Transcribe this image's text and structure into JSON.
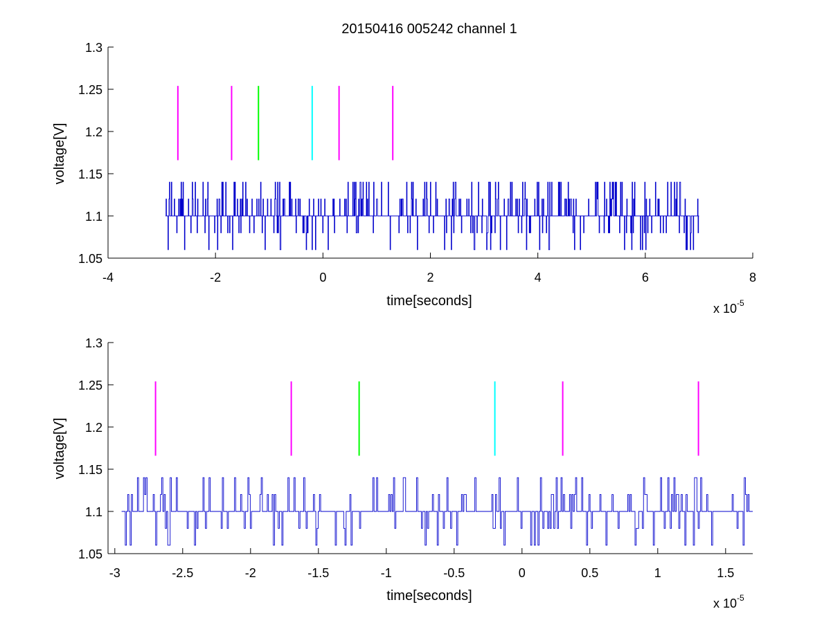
{
  "chart_data": [
    {
      "type": "line",
      "title": "20150416 005242 channel 1",
      "xlabel": "time[seconds]",
      "ylabel": "voltage[V]",
      "x_multiplier": "x 10",
      "x_multiplier_exponent": "-5",
      "xlim": [
        -4,
        8
      ],
      "ylim": [
        1.05,
        1.3
      ],
      "xticks": [
        -4,
        -2,
        0,
        2,
        4,
        6,
        8
      ],
      "xtick_labels": [
        "-4",
        "-2",
        "0",
        "2",
        "4",
        "6",
        "8"
      ],
      "yticks": [
        1.05,
        1.1,
        1.15,
        1.2,
        1.25,
        1.3
      ],
      "ytick_labels": [
        "1.05",
        "1.1",
        "1.15",
        "1.2",
        "1.25",
        "1.3"
      ],
      "grid": false,
      "signal": {
        "color": "#0000cc",
        "x_start": -2.93,
        "x_end": 7.0,
        "levels": [
          1.06,
          1.08,
          1.1,
          1.12,
          1.14
        ],
        "seed": 7,
        "steps": 1100
      },
      "markers": [
        {
          "x": -2.7,
          "y_range": [
            1.166,
            1.254
          ],
          "color": "#ff00ff"
        },
        {
          "x": -1.7,
          "y_range": [
            1.166,
            1.254
          ],
          "color": "#ff00ff"
        },
        {
          "x": -1.2,
          "y_range": [
            1.166,
            1.254
          ],
          "color": "#00ff00"
        },
        {
          "x": -0.2,
          "y_range": [
            1.166,
            1.254
          ],
          "color": "#00ffff"
        },
        {
          "x": 0.3,
          "y_range": [
            1.166,
            1.254
          ],
          "color": "#ff00ff"
        },
        {
          "x": 1.3,
          "y_range": [
            1.166,
            1.254
          ],
          "color": "#ff00ff"
        }
      ]
    },
    {
      "type": "line",
      "xlabel": "time[seconds]",
      "ylabel": "voltage[V]",
      "x_multiplier": "x 10",
      "x_multiplier_exponent": "-5",
      "xlim": [
        -3.05,
        1.7
      ],
      "ylim": [
        1.05,
        1.3
      ],
      "xticks": [
        -3,
        -2.5,
        -2,
        -1.5,
        -1,
        -0.5,
        0,
        0.5,
        1,
        1.5
      ],
      "xtick_labels": [
        "-3",
        "-2.5",
        "-2",
        "-1.5",
        "-1",
        "-0.5",
        "0",
        "0.5",
        "1",
        "1.5"
      ],
      "yticks": [
        1.05,
        1.1,
        1.15,
        1.2,
        1.25,
        1.3
      ],
      "ytick_labels": [
        "1.05",
        "1.1",
        "1.15",
        "1.2",
        "1.25",
        "1.3"
      ],
      "grid": false,
      "signal": {
        "color": "#0000cc",
        "x_start": -2.95,
        "x_end": 1.7,
        "levels": [
          1.06,
          1.08,
          1.1,
          1.12,
          1.14
        ],
        "seed": 13,
        "steps": 520
      },
      "markers": [
        {
          "x": -2.7,
          "y_range": [
            1.166,
            1.254
          ],
          "color": "#ff00ff"
        },
        {
          "x": -1.7,
          "y_range": [
            1.166,
            1.254
          ],
          "color": "#ff00ff"
        },
        {
          "x": -1.2,
          "y_range": [
            1.166,
            1.254
          ],
          "color": "#00ff00"
        },
        {
          "x": -0.2,
          "y_range": [
            1.166,
            1.254
          ],
          "color": "#00ffff"
        },
        {
          "x": 0.3,
          "y_range": [
            1.166,
            1.254
          ],
          "color": "#ff00ff"
        },
        {
          "x": 1.3,
          "y_range": [
            1.166,
            1.254
          ],
          "color": "#ff00ff"
        }
      ]
    }
  ]
}
